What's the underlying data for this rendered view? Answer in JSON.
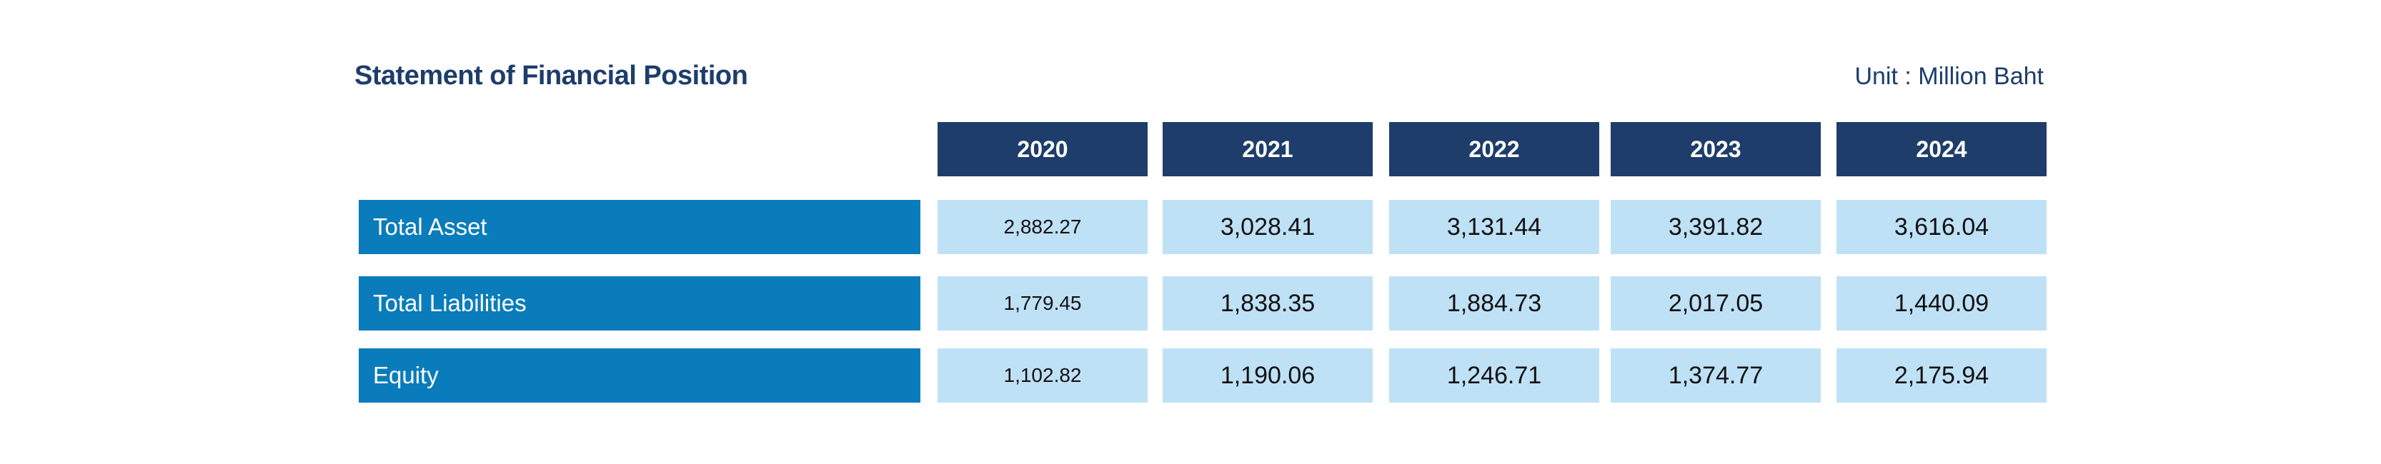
{
  "title": "Statement of Financial Position",
  "unit": "Unit : Million Baht",
  "years": [
    "2020",
    "2021",
    "2022",
    "2023",
    "2024"
  ],
  "rows": [
    {
      "label": "Total Asset",
      "values": [
        "2,882.27",
        "3,028.41",
        "3,131.44",
        "3,391.82",
        "3,616.04"
      ]
    },
    {
      "label": "Total Liabilities",
      "values": [
        "1,779.45",
        "1,838.35",
        "1,884.73",
        "2,017.05",
        "1,440.09"
      ]
    },
    {
      "label": "Equity",
      "values": [
        "1,102.82",
        "1,190.06",
        "1,246.71",
        "1,374.77",
        "2,175.94"
      ]
    }
  ],
  "colors": {
    "title": "#1d3d6b",
    "header_bg": "#1e3d6b",
    "label_bg": "#0a7cbb",
    "cell_bg": "#bfe1f6"
  }
}
